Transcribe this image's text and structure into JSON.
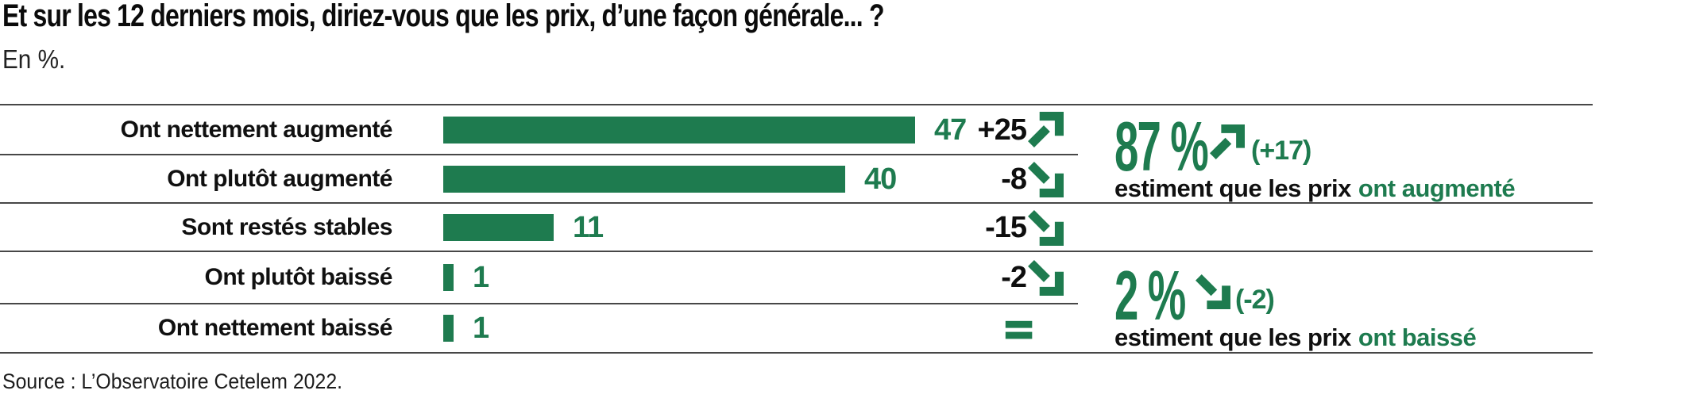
{
  "title": "Et sur les 12 derniers mois, diriez-vous que les prix, d’une façon générale... ?",
  "subtitle": "En %.",
  "source": "Source : L’Observatoire Cetelem 2022.",
  "colors": {
    "accent_green": "#1E7B4F",
    "text_black": "#0e0e0e",
    "line_gray": "#474747"
  },
  "chart_data": {
    "type": "bar",
    "orientation": "horizontal",
    "unit": "%",
    "title": "Et sur les 12 derniers mois, diriez-vous que les prix, d’une façon générale... ?",
    "xlabel": "",
    "ylabel": "",
    "xlim": [
      0,
      47
    ],
    "grid": "horizontal row separators only, no axes",
    "legend": "none",
    "categories": [
      "Ont nettement augmenté",
      "Ont plutôt augmenté",
      "Sont restés stables",
      "Ont plutôt baissé",
      "Ont nettement baissé"
    ],
    "values": [
      47,
      40,
      11,
      1,
      1
    ],
    "delta_labels": [
      "+25",
      "-8",
      "-15",
      "-2",
      ""
    ],
    "delta_values": [
      25,
      -8,
      -15,
      -2,
      0
    ],
    "trends": [
      "up",
      "down",
      "down",
      "down",
      "equal"
    ]
  },
  "summaries": [
    {
      "value": "87 %",
      "trend": "up",
      "delta": "(+17)",
      "sentence_prefix": "estiment que les prix",
      "sentence_highlight": "ont augmenté",
      "covers_rows": [
        0,
        1
      ]
    },
    {
      "value": "2 %",
      "trend": "down",
      "delta": "(-2)",
      "sentence_prefix": "estiment que les prix",
      "sentence_highlight": "ont baissé",
      "covers_rows": [
        3,
        4
      ]
    }
  ]
}
